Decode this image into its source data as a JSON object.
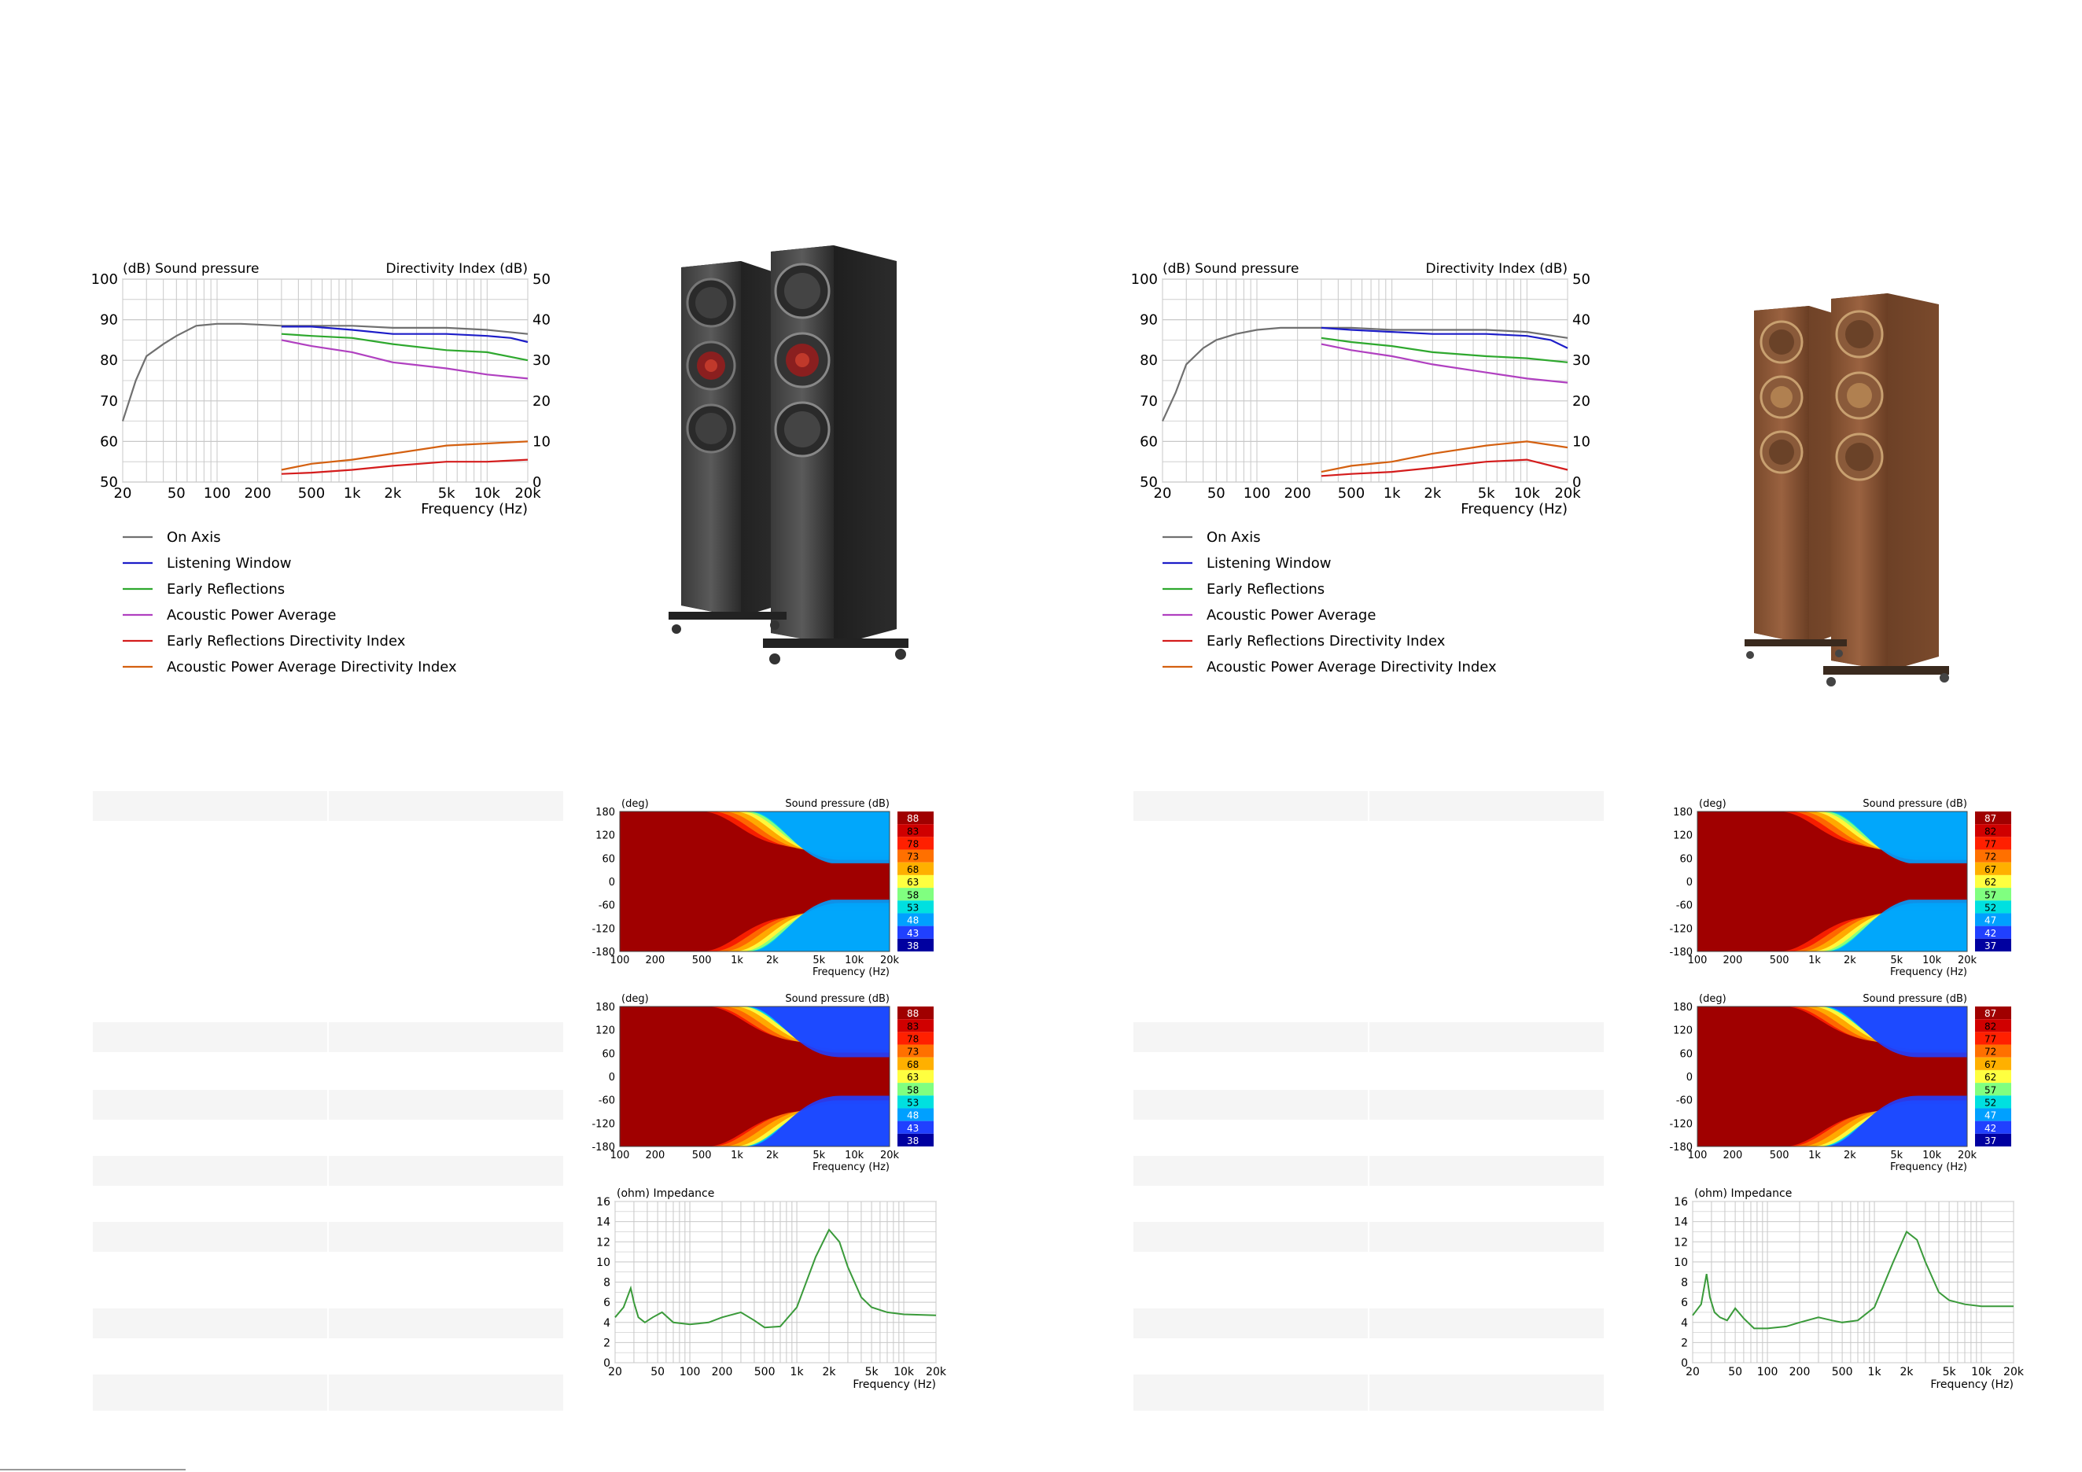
{
  "colors": {
    "on_axis": "#707070",
    "listening_window": "#1d1dc8",
    "early_reflections": "#2ea82e",
    "acoustic_power_average": "#b040c0",
    "early_reflections_di": "#d41c1c",
    "acoustic_power_average_di": "#d46010",
    "impedance": "#3a9a3a",
    "grid": "#c8c8c8"
  },
  "charts": [
    {
      "type": "line",
      "title_left": "(dB)  Sound pressure",
      "title_right": "Directivity Index  (dB)",
      "xlabel": "Frequency  (Hz)",
      "xscale": "log",
      "xlim": [
        20,
        20000
      ],
      "ylim": [
        50,
        100
      ],
      "y2lim": [
        0,
        50
      ],
      "x_ticks": [
        "20",
        "50",
        "100",
        "200",
        "500",
        "1k",
        "2k",
        "5k",
        "10k",
        "20k"
      ],
      "y_ticks": [
        "100",
        "90",
        "80",
        "70",
        "60",
        "50"
      ],
      "y2_ticks": [
        "50",
        "40",
        "30",
        "20",
        "10",
        "0"
      ],
      "legend": [
        "On Axis",
        "Listening Window",
        "Early Reflections",
        "Acoustic Power Average",
        "Early Reflections Directivity Index",
        "Acoustic Power Average Directivity Index"
      ],
      "legend_position": "bottom",
      "series": [
        {
          "key": "on_axis",
          "axis": "left",
          "x": [
            20,
            25,
            30,
            40,
            50,
            70,
            100,
            150,
            200,
            300,
            500,
            1000,
            2000,
            5000,
            10000,
            20000
          ],
          "y": [
            65,
            75,
            81,
            84,
            86,
            88.5,
            89,
            89,
            88.8,
            88.5,
            88.5,
            88.5,
            88,
            88,
            87.5,
            86.5
          ]
        },
        {
          "key": "listening_window",
          "axis": "left",
          "x": [
            300,
            500,
            1000,
            2000,
            5000,
            10000,
            15000,
            20000
          ],
          "y": [
            88.3,
            88.3,
            87.5,
            86.5,
            86.5,
            86,
            85.5,
            84.5
          ]
        },
        {
          "key": "early_reflections",
          "axis": "left",
          "x": [
            300,
            500,
            1000,
            2000,
            5000,
            10000,
            20000
          ],
          "y": [
            86.5,
            86,
            85.5,
            84,
            82.5,
            82,
            80
          ]
        },
        {
          "key": "acoustic_power_average",
          "axis": "left",
          "x": [
            300,
            500,
            1000,
            2000,
            5000,
            10000,
            20000
          ],
          "y": [
            85,
            83.5,
            82,
            79.5,
            78,
            76.5,
            75.5
          ]
        },
        {
          "key": "early_reflections_di",
          "axis": "right",
          "x": [
            300,
            500,
            1000,
            2000,
            5000,
            10000,
            20000
          ],
          "y": [
            2,
            2.3,
            3,
            4,
            5,
            5,
            5.5
          ]
        },
        {
          "key": "acoustic_power_average_di",
          "axis": "right",
          "x": [
            300,
            500,
            1000,
            2000,
            5000,
            10000,
            20000
          ],
          "y": [
            3,
            4.5,
            5.5,
            7,
            9,
            9.5,
            10
          ]
        }
      ]
    },
    {
      "type": "line",
      "title_left": "(dB)  Sound pressure",
      "title_right": "Directivity Index  (dB)",
      "xlabel": "Frequency  (Hz)",
      "xscale": "log",
      "xlim": [
        20,
        20000
      ],
      "ylim": [
        50,
        100
      ],
      "y2lim": [
        0,
        50
      ],
      "x_ticks": [
        "20",
        "50",
        "100",
        "200",
        "500",
        "1k",
        "2k",
        "5k",
        "10k",
        "20k"
      ],
      "y_ticks": [
        "100",
        "90",
        "80",
        "70",
        "60",
        "50"
      ],
      "y2_ticks": [
        "50",
        "40",
        "30",
        "20",
        "10",
        "0"
      ],
      "legend": [
        "On Axis",
        "Listening Window",
        "Early Reflections",
        "Acoustic Power Average",
        "Early Reflections Directivity Index",
        "Acoustic Power Average Directivity Index"
      ],
      "legend_position": "bottom",
      "series": [
        {
          "key": "on_axis",
          "axis": "left",
          "x": [
            20,
            25,
            30,
            40,
            50,
            70,
            100,
            150,
            200,
            300,
            500,
            1000,
            2000,
            5000,
            10000,
            20000
          ],
          "y": [
            65,
            72,
            79,
            83,
            85,
            86.5,
            87.5,
            88,
            88,
            88,
            88,
            87.5,
            87.5,
            87.5,
            87,
            85.5
          ]
        },
        {
          "key": "listening_window",
          "axis": "left",
          "x": [
            300,
            500,
            1000,
            2000,
            5000,
            10000,
            15000,
            20000
          ],
          "y": [
            88,
            87.5,
            87,
            86.5,
            86.5,
            86,
            85,
            83
          ]
        },
        {
          "key": "early_reflections",
          "axis": "left",
          "x": [
            300,
            500,
            1000,
            2000,
            5000,
            10000,
            20000
          ],
          "y": [
            85.5,
            84.5,
            83.5,
            82,
            81,
            80.5,
            79.5
          ]
        },
        {
          "key": "acoustic_power_average",
          "axis": "left",
          "x": [
            300,
            500,
            1000,
            2000,
            5000,
            10000,
            20000
          ],
          "y": [
            84,
            82.5,
            81,
            79,
            77,
            75.5,
            74.5
          ]
        },
        {
          "key": "early_reflections_di",
          "axis": "right",
          "x": [
            300,
            500,
            1000,
            2000,
            5000,
            10000,
            20000
          ],
          "y": [
            1.5,
            2,
            2.5,
            3.5,
            5,
            5.5,
            3
          ]
        },
        {
          "key": "acoustic_power_average_di",
          "axis": "right",
          "x": [
            300,
            500,
            1000,
            2000,
            5000,
            10000,
            20000
          ],
          "y": [
            2.5,
            4,
            5,
            7,
            9,
            10,
            8.5
          ]
        }
      ]
    },
    {
      "type": "heatmap",
      "ylabel": "(deg)",
      "title": "Sound pressure  (dB)",
      "xlabel": "Frequency  (Hz)",
      "x_ticks": [
        "100",
        "200",
        "500",
        "1k",
        "2k",
        "5k",
        "10k",
        "20k"
      ],
      "y_ticks": [
        "180",
        "120",
        "60",
        "0",
        "-60",
        "-120",
        "-180"
      ],
      "colorbar": [
        "88",
        "83",
        "78",
        "73",
        "68",
        "63",
        "58",
        "53",
        "48",
        "43",
        "38"
      ],
      "variant": "horizontal"
    },
    {
      "type": "heatmap",
      "ylabel": "(deg)",
      "title": "Sound pressure  (dB)",
      "xlabel": "Frequency  (Hz)",
      "x_ticks": [
        "100",
        "200",
        "500",
        "1k",
        "2k",
        "5k",
        "10k",
        "20k"
      ],
      "y_ticks": [
        "180",
        "120",
        "60",
        "0",
        "-60",
        "-120",
        "-180"
      ],
      "colorbar": [
        "88",
        "83",
        "78",
        "73",
        "68",
        "63",
        "58",
        "53",
        "48",
        "43",
        "38"
      ],
      "variant": "vertical"
    },
    {
      "type": "line",
      "title": "(ohm)  Impedance",
      "xlabel": "Frequency  (Hz)",
      "xscale": "log",
      "xlim": [
        20,
        20000
      ],
      "ylim": [
        0,
        16
      ],
      "x_ticks": [
        "20",
        "50",
        "100",
        "200",
        "500",
        "1k",
        "2k",
        "5k",
        "10k",
        "20k"
      ],
      "y_ticks": [
        "16",
        "14",
        "12",
        "10",
        "8",
        "6",
        "4",
        "2",
        "0"
      ],
      "series": [
        {
          "key": "impedance",
          "x": [
            20,
            24,
            28,
            30,
            33,
            38,
            45,
            55,
            70,
            100,
            150,
            200,
            300,
            400,
            500,
            700,
            1000,
            1500,
            2000,
            2500,
            3000,
            4000,
            5000,
            7000,
            10000,
            20000
          ],
          "y": [
            4.5,
            5.5,
            7.4,
            6.0,
            4.5,
            4.0,
            4.5,
            5.0,
            4.0,
            3.8,
            4.0,
            4.5,
            5.0,
            4.2,
            3.5,
            3.6,
            5.5,
            10.5,
            13.2,
            12.0,
            9.5,
            6.5,
            5.5,
            5.0,
            4.8,
            4.7
          ]
        }
      ]
    },
    {
      "type": "heatmap",
      "ylabel": "(deg)",
      "title": "Sound pressure  (dB)",
      "xlabel": "Frequency  (Hz)",
      "x_ticks": [
        "100",
        "200",
        "500",
        "1k",
        "2k",
        "5k",
        "10k",
        "20k"
      ],
      "y_ticks": [
        "180",
        "120",
        "60",
        "0",
        "-60",
        "-120",
        "-180"
      ],
      "colorbar": [
        "87",
        "82",
        "77",
        "72",
        "67",
        "62",
        "57",
        "52",
        "47",
        "42",
        "37"
      ],
      "variant": "horizontal"
    },
    {
      "type": "heatmap",
      "ylabel": "(deg)",
      "title": "Sound pressure  (dB)",
      "xlabel": "Frequency  (Hz)",
      "x_ticks": [
        "100",
        "200",
        "500",
        "1k",
        "2k",
        "5k",
        "10k",
        "20k"
      ],
      "y_ticks": [
        "180",
        "120",
        "60",
        "0",
        "-60",
        "-120",
        "-180"
      ],
      "colorbar": [
        "87",
        "82",
        "77",
        "72",
        "67",
        "62",
        "57",
        "52",
        "47",
        "42",
        "37"
      ],
      "variant": "vertical"
    },
    {
      "type": "line",
      "title": "(ohm)  Impedance",
      "xlabel": "Frequency  (Hz)",
      "xscale": "log",
      "xlim": [
        20,
        20000
      ],
      "ylim": [
        0,
        16
      ],
      "x_ticks": [
        "20",
        "50",
        "100",
        "200",
        "500",
        "1k",
        "2k",
        "5k",
        "10k",
        "20k"
      ],
      "y_ticks": [
        "16",
        "14",
        "12",
        "10",
        "8",
        "6",
        "4",
        "2",
        "0"
      ],
      "series": [
        {
          "key": "impedance",
          "x": [
            20,
            24,
            27,
            29,
            32,
            36,
            42,
            50,
            60,
            75,
            100,
            150,
            200,
            300,
            400,
            500,
            700,
            1000,
            1500,
            2000,
            2500,
            3000,
            4000,
            5000,
            7000,
            10000,
            20000
          ],
          "y": [
            4.7,
            5.8,
            8.8,
            6.5,
            5.0,
            4.5,
            4.2,
            5.4,
            4.4,
            3.4,
            3.4,
            3.6,
            4.0,
            4.5,
            4.2,
            4.0,
            4.2,
            5.5,
            10.0,
            13.0,
            12.2,
            10.0,
            7.0,
            6.2,
            5.8,
            5.6,
            5.6
          ]
        }
      ]
    }
  ]
}
